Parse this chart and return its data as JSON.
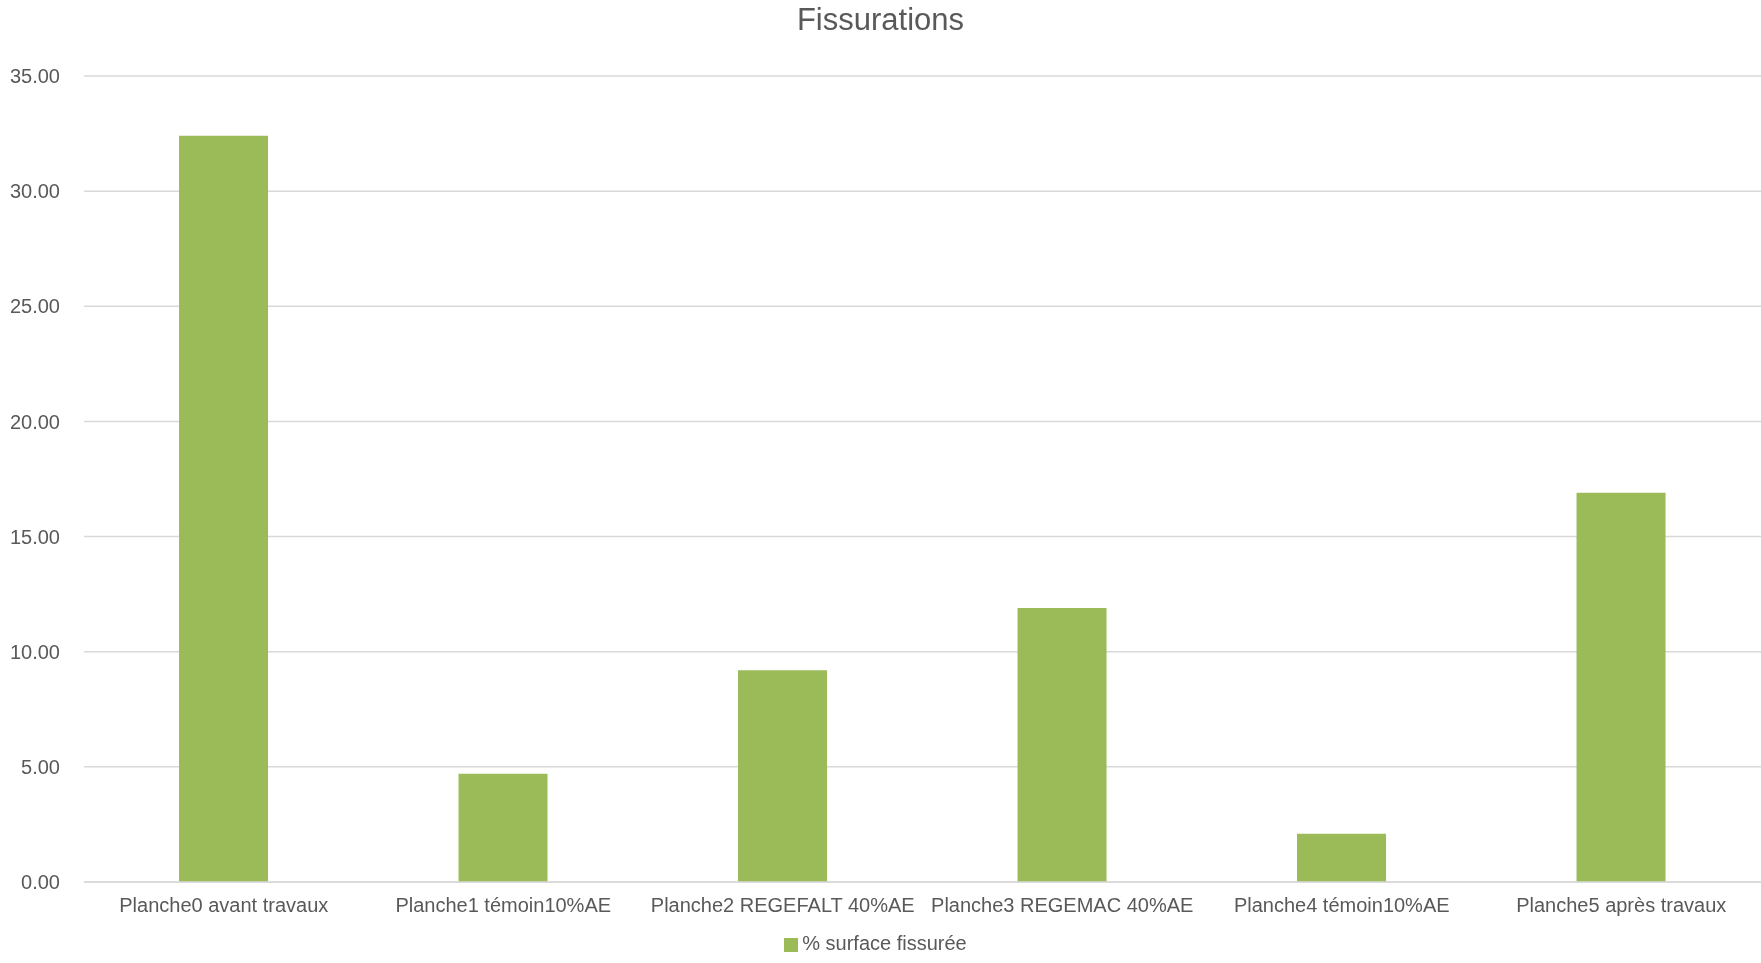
{
  "chart_data": {
    "type": "bar",
    "title": "Fissurations",
    "categories": [
      "Planche0 avant travaux",
      "Planche1 témoin10%AE",
      "Planche2 REGEFALT 40%AE",
      "Planche3 REGEMAC 40%AE",
      "Planche4 témoin10%AE",
      "Planche5 après travaux"
    ],
    "series": [
      {
        "name": "% surface fissurée",
        "color": "#9bbb59",
        "values": [
          32.4,
          4.7,
          9.2,
          11.9,
          2.1,
          16.9
        ]
      }
    ],
    "ylim": [
      0,
      35
    ],
    "yticks": [
      {
        "value": 0,
        "label": "0.00"
      },
      {
        "value": 5,
        "label": "5.00"
      },
      {
        "value": 10,
        "label": "10.00"
      },
      {
        "value": 15,
        "label": "15.00"
      },
      {
        "value": 20,
        "label": "20.00"
      },
      {
        "value": 25,
        "label": "25.00"
      },
      {
        "value": 30,
        "label": "30.00"
      },
      {
        "value": 35,
        "label": "35.00"
      }
    ],
    "grid": "y",
    "legend": "bottom"
  }
}
